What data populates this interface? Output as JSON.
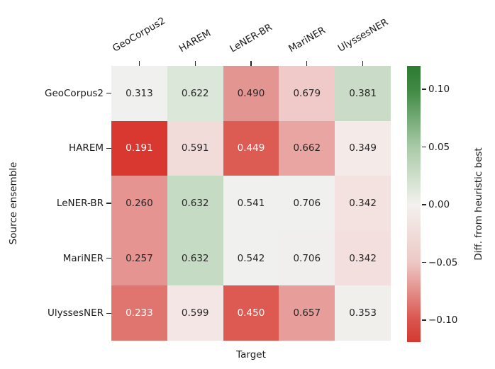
{
  "figure": {
    "xlabel": "Target",
    "ylabel": "Source ensemble",
    "colorbar_label": "Diff. from heuristic best"
  },
  "chart_data": {
    "type": "heatmap",
    "title": "",
    "xlabel": "Target",
    "ylabel": "Source ensemble",
    "x_categories": [
      "GeoCorpus2",
      "HAREM",
      "LeNER-BR",
      "MariNER",
      "UlyssesNER"
    ],
    "y_categories": [
      "GeoCorpus2",
      "HAREM",
      "LeNER-BR",
      "MariNER",
      "UlyssesNER"
    ],
    "values": [
      [
        "0.313",
        "0.622",
        "0.490",
        "0.679",
        "0.381"
      ],
      [
        "0.191",
        "0.591",
        "0.449",
        "0.662",
        "0.349"
      ],
      [
        "0.260",
        "0.632",
        "0.541",
        "0.706",
        "0.342"
      ],
      [
        "0.257",
        "0.632",
        "0.542",
        "0.706",
        "0.342"
      ],
      [
        "0.233",
        "0.599",
        "0.450",
        "0.657",
        "0.353"
      ]
    ],
    "cell_colors": [
      [
        "#f0f1ee",
        "#dbe7d9",
        "#e39592",
        "#f0cac8",
        "#cadcc7"
      ],
      [
        "#d8382f",
        "#f2dcda",
        "#dc5b53",
        "#e8a5a2",
        "#f4ebe9"
      ],
      [
        "#e59491",
        "#c6dbc4",
        "#f0f0ee",
        "#f0f0ee",
        "#f4e2e0"
      ],
      [
        "#e59491",
        "#c6dbc4",
        "#f0f0ee",
        "#f0efed",
        "#f3e0de"
      ],
      [
        "#e0746e",
        "#f3e6e4",
        "#dd5a52",
        "#e79d99",
        "#f1efec"
      ]
    ],
    "cell_text_colors": [
      [
        "#262626",
        "#262626",
        "#262626",
        "#262626",
        "#262626"
      ],
      [
        "#ffffff",
        "#262626",
        "#ffffff",
        "#262626",
        "#262626"
      ],
      [
        "#262626",
        "#262626",
        "#262626",
        "#262626",
        "#262626"
      ],
      [
        "#262626",
        "#262626",
        "#262626",
        "#262626",
        "#262626"
      ],
      [
        "#ffffff",
        "#262626",
        "#ffffff",
        "#262626",
        "#262626"
      ]
    ],
    "legend_position": "right-colorbar",
    "grid": false,
    "colorbar": {
      "label": "Diff. from heuristic best",
      "tick_labels": [
        "0.10",
        "0.05",
        "0.00",
        "−0.05",
        "−0.10"
      ],
      "tick_values": [
        0.1,
        0.05,
        0.0,
        -0.05,
        -0.1
      ],
      "range": [
        -0.122,
        0.122
      ],
      "gradient_stops": [
        [
          "0%",
          "#2d7c33"
        ],
        [
          "8.5%",
          "#3f8943"
        ],
        [
          "29.4%",
          "#a9caa7"
        ],
        [
          "50.3%",
          "#f3f1ee"
        ],
        [
          "71.2%",
          "#edc8c5"
        ],
        [
          "92.1%",
          "#da544d"
        ],
        [
          "100%",
          "#d23a32"
        ]
      ]
    }
  }
}
